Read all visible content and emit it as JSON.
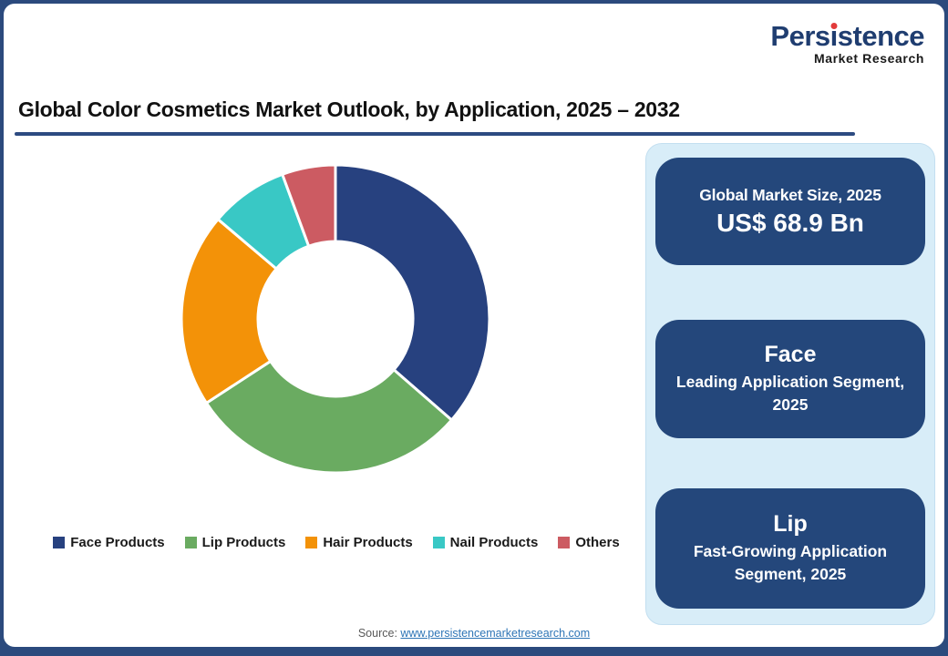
{
  "colors": {
    "frame_navy": "#2b4a7d",
    "card_navy": "#24477b",
    "panel_blue": "#d8edf8",
    "underline_navy": "#2d4b81",
    "link_blue": "#2e75b6",
    "brand_blue": "#1f3d70",
    "dot_red": "#e23a3a"
  },
  "logo": {
    "brand_pre": "Pers",
    "brand_i": "ı",
    "brand_post": "stence",
    "tagline": "Market Research"
  },
  "header": {
    "title": "Global Color Cosmetics Market Outlook, by Application, 2025 – 2032"
  },
  "chart_data": {
    "type": "pie",
    "subtype": "donut",
    "title": "Global Color Cosmetics Market Outlook, by Application, 2025 – 2032",
    "units": "% share of market",
    "start_angle_deg_from_top": 0,
    "direction": "clockwise",
    "inner_radius_ratio": 0.5,
    "segments": [
      {
        "label": "Face Products",
        "value": 36.4,
        "color": "#27417f"
      },
      {
        "label": "Lip Products",
        "value": 29.4,
        "color": "#6aab61"
      },
      {
        "label": "Hair Products",
        "value": 20.4,
        "color": "#f39208"
      },
      {
        "label": "Nail Products",
        "value": 8.2,
        "color": "#39c8c5"
      },
      {
        "label": "Others",
        "value": 5.6,
        "color": "#cc5b62"
      }
    ],
    "legend_position": "bottom"
  },
  "panel": {
    "cards": [
      {
        "title": "Global Market Size, 2025",
        "value": "US$ 68.9 Bn"
      },
      {
        "title": "Face",
        "subtitle": "Leading Application Segment, 2025"
      },
      {
        "title": "Lip",
        "subtitle": "Fast-Growing Application Segment, 2025"
      }
    ]
  },
  "source": {
    "label": "Source:",
    "link": "www.persistencemarketresearch.com"
  }
}
